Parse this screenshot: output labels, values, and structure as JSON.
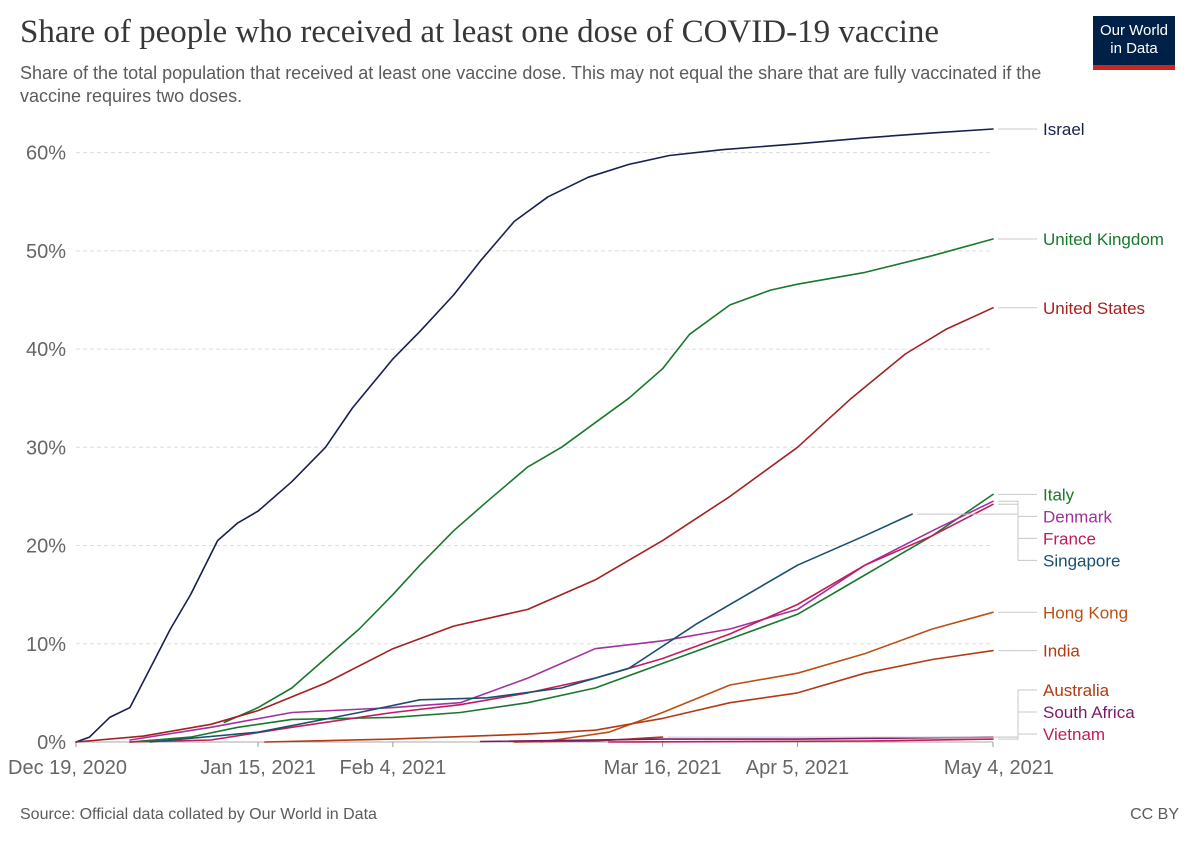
{
  "title": "Share of people who received at least one dose of COVID-19 vaccine",
  "subtitle": "Share of the total population that received at least one vaccine dose. This may not equal the share that are fully vaccinated if the vaccine requires two doses.",
  "logo": {
    "line1": "Our World",
    "line2": "in Data",
    "bg": "#002147",
    "accent": "#ce261e"
  },
  "footer": {
    "source": "Source: Official data collated by Our World in Data",
    "license": "CC BY"
  },
  "chart_data": {
    "type": "line",
    "x_range": [
      "2020-12-19",
      "2021-05-04"
    ],
    "ylim": [
      0,
      60
    ],
    "y_ticks": [
      0,
      10,
      20,
      30,
      40,
      50,
      60
    ],
    "y_tick_labels": [
      "0%",
      "10%",
      "20%",
      "30%",
      "40%",
      "50%",
      "60%"
    ],
    "x_ticks": [
      "2020-12-19",
      "2021-01-15",
      "2021-02-04",
      "2021-03-16",
      "2021-04-05",
      "2021-05-04"
    ],
    "x_tick_labels": [
      "Dec 19, 2020",
      "Jan 15, 2021",
      "Feb 4, 2021",
      "Mar 16, 2021",
      "Apr 5, 2021",
      "May 4, 2021"
    ],
    "grid": "horizontal dashed",
    "series": [
      {
        "name": "Israel",
        "color": "#18204e",
        "points": [
          [
            "2020-12-19",
            0
          ],
          [
            "2020-12-21",
            0.5
          ],
          [
            "2020-12-24",
            2.5
          ],
          [
            "2020-12-27",
            3.5
          ],
          [
            "2020-12-30",
            7.5
          ],
          [
            "2021-01-02",
            11.5
          ],
          [
            "2021-01-05",
            15
          ],
          [
            "2021-01-09",
            20.5
          ],
          [
            "2021-01-12",
            22.3
          ],
          [
            "2021-01-15",
            23.5
          ],
          [
            "2021-01-20",
            26.5
          ],
          [
            "2021-01-25",
            30
          ],
          [
            "2021-01-29",
            34
          ],
          [
            "2021-02-04",
            39
          ],
          [
            "2021-02-08",
            41.8
          ],
          [
            "2021-02-13",
            45.5
          ],
          [
            "2021-02-17",
            49
          ],
          [
            "2021-02-22",
            53
          ],
          [
            "2021-02-27",
            55.5
          ],
          [
            "2021-03-05",
            57.5
          ],
          [
            "2021-03-11",
            58.8
          ],
          [
            "2021-03-17",
            59.7
          ],
          [
            "2021-03-25",
            60.3
          ],
          [
            "2021-04-05",
            60.9
          ],
          [
            "2021-04-15",
            61.5
          ],
          [
            "2021-04-25",
            62
          ],
          [
            "2021-05-04",
            62.4
          ]
        ]
      },
      {
        "name": "United Kingdom",
        "color": "#18792b",
        "points": [
          [
            "2021-01-10",
            2
          ],
          [
            "2021-01-15",
            3.5
          ],
          [
            "2021-01-20",
            5.5
          ],
          [
            "2021-01-25",
            8.5
          ],
          [
            "2021-01-30",
            11.5
          ],
          [
            "2021-02-04",
            15
          ],
          [
            "2021-02-08",
            18
          ],
          [
            "2021-02-13",
            21.5
          ],
          [
            "2021-02-18",
            24.5
          ],
          [
            "2021-02-24",
            28
          ],
          [
            "2021-03-01",
            30
          ],
          [
            "2021-03-06",
            32.5
          ],
          [
            "2021-03-11",
            35
          ],
          [
            "2021-03-16",
            38
          ],
          [
            "2021-03-20",
            41.5
          ],
          [
            "2021-03-26",
            44.5
          ],
          [
            "2021-04-01",
            46
          ],
          [
            "2021-04-05",
            46.6
          ],
          [
            "2021-04-15",
            47.8
          ],
          [
            "2021-04-25",
            49.5
          ],
          [
            "2021-05-04",
            51.2
          ]
        ]
      },
      {
        "name": "United States",
        "color": "#a32120",
        "points": [
          [
            "2020-12-19",
            0
          ],
          [
            "2020-12-29",
            0.6
          ],
          [
            "2021-01-08",
            1.8
          ],
          [
            "2021-01-15",
            3.2
          ],
          [
            "2021-01-25",
            6
          ],
          [
            "2021-02-04",
            9.5
          ],
          [
            "2021-02-13",
            11.8
          ],
          [
            "2021-02-24",
            13.5
          ],
          [
            "2021-03-06",
            16.5
          ],
          [
            "2021-03-16",
            20.5
          ],
          [
            "2021-03-26",
            25
          ],
          [
            "2021-04-05",
            30
          ],
          [
            "2021-04-13",
            35
          ],
          [
            "2021-04-21",
            39.5
          ],
          [
            "2021-04-27",
            42
          ],
          [
            "2021-05-04",
            44.2
          ]
        ]
      },
      {
        "name": "Italy",
        "color": "#18792b",
        "points": [
          [
            "2020-12-27",
            0
          ],
          [
            "2021-01-05",
            0.5
          ],
          [
            "2021-01-12",
            1.5
          ],
          [
            "2021-01-20",
            2.3
          ],
          [
            "2021-02-04",
            2.5
          ],
          [
            "2021-02-14",
            3
          ],
          [
            "2021-02-24",
            4
          ],
          [
            "2021-03-06",
            5.5
          ],
          [
            "2021-03-16",
            8
          ],
          [
            "2021-03-26",
            10.5
          ],
          [
            "2021-04-05",
            13
          ],
          [
            "2021-04-15",
            17
          ],
          [
            "2021-04-25",
            21
          ],
          [
            "2021-05-04",
            25.2
          ]
        ]
      },
      {
        "name": "Denmark",
        "color": "#a2309e",
        "points": [
          [
            "2020-12-27",
            0.2
          ],
          [
            "2021-01-08",
            1.5
          ],
          [
            "2021-01-20",
            3
          ],
          [
            "2021-02-04",
            3.5
          ],
          [
            "2021-02-14",
            4
          ],
          [
            "2021-02-24",
            6.5
          ],
          [
            "2021-03-06",
            9.5
          ],
          [
            "2021-03-16",
            10.3
          ],
          [
            "2021-03-26",
            11.5
          ],
          [
            "2021-04-05",
            13.5
          ],
          [
            "2021-04-15",
            18
          ],
          [
            "2021-04-25",
            21.5
          ],
          [
            "2021-05-04",
            24.5
          ]
        ]
      },
      {
        "name": "France",
        "color": "#c21c5c",
        "points": [
          [
            "2020-12-27",
            0
          ],
          [
            "2021-01-08",
            0.2
          ],
          [
            "2021-01-20",
            1.5
          ],
          [
            "2021-02-04",
            3
          ],
          [
            "2021-02-14",
            3.8
          ],
          [
            "2021-02-24",
            5
          ],
          [
            "2021-03-06",
            6.5
          ],
          [
            "2021-03-16",
            8.5
          ],
          [
            "2021-03-26",
            11
          ],
          [
            "2021-04-05",
            14
          ],
          [
            "2021-04-15",
            18
          ],
          [
            "2021-04-25",
            21
          ],
          [
            "2021-05-04",
            24.2
          ]
        ]
      },
      {
        "name": "Singapore",
        "color": "#19506e",
        "points": [
          [
            "2020-12-30",
            0
          ],
          [
            "2021-01-15",
            1
          ],
          [
            "2021-01-30",
            3
          ],
          [
            "2021-02-08",
            4.3
          ],
          [
            "2021-02-18",
            4.5
          ],
          [
            "2021-03-01",
            5.5
          ],
          [
            "2021-03-11",
            7.5
          ],
          [
            "2021-03-21",
            12
          ],
          [
            "2021-04-05",
            18
          ],
          [
            "2021-04-15",
            21
          ],
          [
            "2021-04-22",
            23.2
          ]
        ]
      },
      {
        "name": "Hong Kong",
        "color": "#bd4f15",
        "points": [
          [
            "2021-02-26",
            0
          ],
          [
            "2021-03-08",
            1
          ],
          [
            "2021-03-16",
            3
          ],
          [
            "2021-03-26",
            5.8
          ],
          [
            "2021-04-05",
            7
          ],
          [
            "2021-04-15",
            9
          ],
          [
            "2021-04-25",
            11.5
          ],
          [
            "2021-05-04",
            13.2
          ]
        ]
      },
      {
        "name": "India",
        "color": "#b33a12",
        "points": [
          [
            "2021-01-16",
            0
          ],
          [
            "2021-02-04",
            0.3
          ],
          [
            "2021-02-24",
            0.8
          ],
          [
            "2021-03-06",
            1.2
          ],
          [
            "2021-03-16",
            2.4
          ],
          [
            "2021-03-26",
            4
          ],
          [
            "2021-04-05",
            5
          ],
          [
            "2021-04-15",
            7
          ],
          [
            "2021-04-25",
            8.4
          ],
          [
            "2021-05-04",
            9.3
          ]
        ]
      },
      {
        "name": "Australia",
        "color": "#b33a12",
        "points": [
          [
            "2021-02-22",
            0
          ],
          [
            "2021-03-06",
            0.1
          ],
          [
            "2021-03-16",
            0.5
          ]
        ]
      },
      {
        "name": "South Africa",
        "color": "#7c1a6a",
        "points": [
          [
            "2021-02-17",
            0.05
          ],
          [
            "2021-03-16",
            0.3
          ],
          [
            "2021-04-05",
            0.3
          ],
          [
            "2021-05-04",
            0.5
          ]
        ]
      },
      {
        "name": "Vietnam",
        "color": "#c21c5c",
        "points": [
          [
            "2021-03-08",
            0
          ],
          [
            "2021-04-15",
            0.1
          ],
          [
            "2021-05-04",
            0.3
          ]
        ]
      }
    ]
  }
}
